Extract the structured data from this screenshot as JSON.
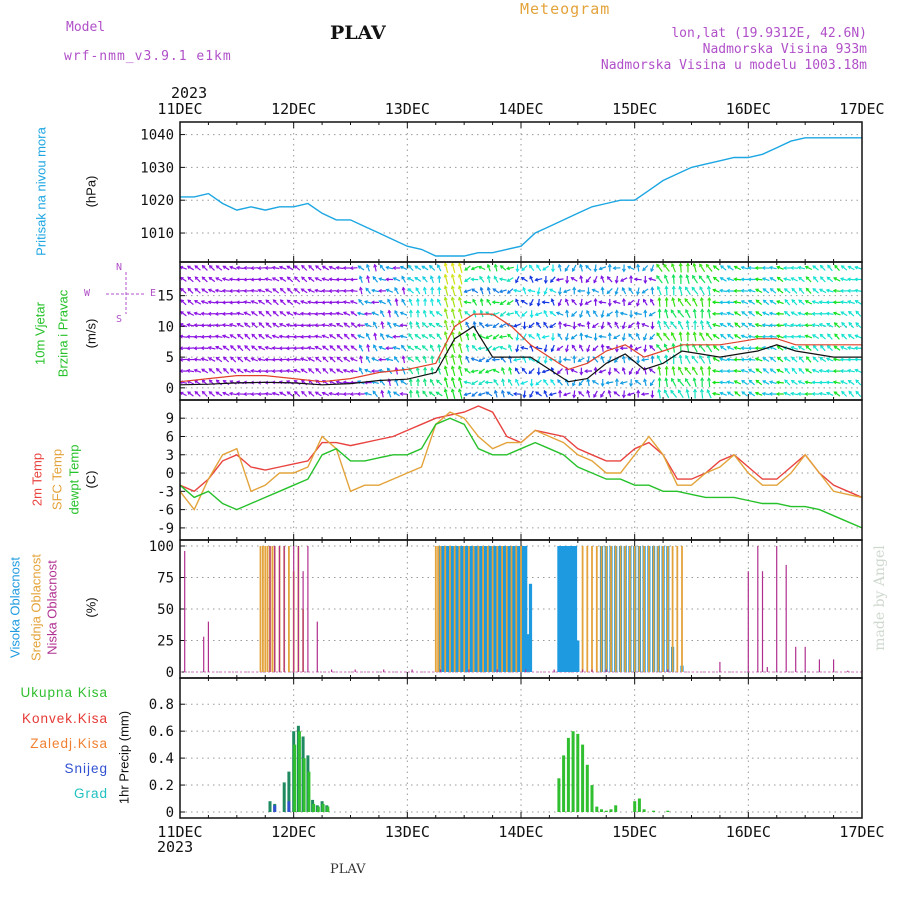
{
  "header": {
    "model_label": "Model",
    "model_name": "wrf-nmm_v3.9.1  e1km",
    "title": "PLAV",
    "subtitle": "Meteogram",
    "coords": "lon,lat (19.9312E, 42.6N)",
    "elevation": "Nadmorska Visina 933m",
    "model_elevation": "Nadmorska Visina u modelu 1003.18m",
    "footer_title": "PLAV",
    "watermark": "made by Angel"
  },
  "axis": {
    "year": "2023",
    "dates": [
      "11DEC",
      "12DEC",
      "13DEC",
      "14DEC",
      "15DEC",
      "16DEC",
      "17DEC"
    ]
  },
  "colors": {
    "pressure": "#1ca6e2",
    "wind_speed": "#111111",
    "gust": "#e0402a",
    "temp2m": "#e8433f",
    "sfc_temp": "#e3a33a",
    "dewpt": "#26c12a",
    "high_cloud": "#1e9be0",
    "mid_cloud": "#e3a33a",
    "low_cloud": "#b03090",
    "total_precip": "#2fbf2f",
    "conv_precip": "#e53935",
    "frozen": "#f08030",
    "snow": "#3050d0",
    "graupel": "#20c0c0",
    "label_purple": "#b050c8"
  },
  "panel_labels": {
    "pressure": [
      "Pritisak na nivou mora",
      "(hPa)"
    ],
    "wind": [
      "10m Vjetar",
      "Brzina i Pravac",
      "(m/s)"
    ],
    "compass": [
      "N",
      "S",
      "W",
      "E"
    ],
    "temp": [
      "2m Temp",
      "SFC Temp",
      "dewpt Temp",
      "(C)"
    ],
    "cloud": [
      "Visoka Oblacnost",
      "Srednja Oblacnost",
      "Niska Oblacnost",
      "(%)"
    ],
    "precip": [
      "Ukupna Kisa",
      "Konvek.Kisa",
      "Zaledj.Kisa",
      "Snijeg",
      "Grad"
    ],
    "precip_axis": "1hr Precip (mm)"
  },
  "chart_data": [
    {
      "type": "line",
      "x": [
        0,
        3,
        6,
        9,
        12,
        15,
        18,
        21,
        24,
        27,
        30,
        33,
        36,
        39,
        42,
        45,
        48,
        51,
        54,
        57,
        60,
        63,
        66,
        69,
        72,
        75,
        78,
        81,
        84,
        87,
        90,
        93,
        96,
        99,
        102,
        105,
        108,
        111,
        114,
        117,
        120,
        123,
        126,
        129,
        132,
        135,
        138,
        141,
        144
      ],
      "series": [
        {
          "values": [
            1021,
            1021,
            1022,
            1019,
            1017,
            1018,
            1017,
            1018,
            1018,
            1019,
            1016,
            1014,
            1014,
            1012,
            1010,
            1008,
            1006,
            1005,
            1003,
            1003,
            1003,
            1004,
            1004,
            1005,
            1006,
            1010,
            1012,
            1014,
            1016,
            1018,
            1019,
            1020,
            1020,
            1023,
            1026,
            1028,
            1030,
            1031,
            1032,
            1033,
            1033,
            1034,
            1036,
            1038,
            1039,
            1039,
            1039,
            1039,
            1039
          ]
        }
      ],
      "ylim": [
        1003,
        1042
      ],
      "yticks": [
        1010,
        1020,
        1030,
        1040
      ]
    },
    {
      "type": "line",
      "x": [
        0,
        6,
        12,
        18,
        24,
        30,
        36,
        42,
        48,
        54,
        58,
        62,
        66,
        70,
        74,
        78,
        82,
        86,
        90,
        94,
        98,
        102,
        106,
        110,
        114,
        118,
        122,
        126,
        130,
        134,
        138,
        144
      ],
      "series": [
        {
          "values": [
            0.5,
            0.6,
            0.8,
            0.9,
            0.8,
            0.5,
            0.7,
            1.2,
            1.4,
            2.5,
            8,
            10,
            5,
            5,
            5,
            3,
            1,
            1.5,
            4,
            5.5,
            3,
            4,
            6,
            5.5,
            5,
            5.5,
            6,
            7,
            6,
            5.5,
            5,
            5
          ]
        },
        {
          "values": [
            1,
            1.5,
            2,
            2,
            1.5,
            1,
            1.5,
            2.5,
            3,
            4,
            10,
            12,
            12,
            10,
            7,
            5,
            3,
            4,
            6,
            7,
            5,
            6,
            7,
            7,
            7,
            7.5,
            8,
            8,
            7,
            7,
            7,
            7
          ]
        }
      ],
      "ylim": [
        -1,
        19.5
      ],
      "yticks": [
        0,
        5,
        10,
        15
      ]
    },
    {
      "type": "line",
      "x": [
        0,
        3,
        6,
        9,
        12,
        15,
        18,
        21,
        24,
        27,
        30,
        33,
        36,
        39,
        42,
        45,
        48,
        51,
        54,
        57,
        60,
        63,
        66,
        69,
        72,
        75,
        78,
        81,
        84,
        87,
        90,
        93,
        96,
        99,
        102,
        105,
        108,
        111,
        114,
        117,
        120,
        123,
        126,
        129,
        132,
        135,
        138,
        141,
        144
      ],
      "series": [
        {
          "values": [
            -2,
            -3,
            -1,
            2,
            3,
            1,
            0.5,
            1,
            1.5,
            2,
            5,
            5,
            4.5,
            5,
            5.5,
            6,
            7,
            8,
            9,
            9.5,
            10,
            11,
            10,
            6,
            5,
            7,
            6.5,
            6,
            4,
            3,
            2,
            2,
            4,
            5,
            3,
            -1,
            -1,
            0,
            2,
            3,
            1,
            -1,
            -1,
            1,
            3,
            0,
            -2,
            -3,
            -4
          ]
        },
        {
          "values": [
            -3,
            -6,
            -1,
            3,
            4,
            -3,
            -2,
            0,
            0,
            1,
            6,
            4,
            -3,
            -2,
            -2,
            -1,
            0,
            1,
            8,
            10,
            9,
            6,
            4,
            5,
            5,
            7,
            6,
            5,
            3,
            2,
            0,
            0,
            3,
            6,
            3,
            -2,
            -2,
            0,
            1,
            3,
            0,
            -2,
            -2,
            0,
            3,
            0,
            -3,
            -3.5,
            -4
          ]
        },
        {
          "values": [
            -2,
            -4,
            -3,
            -5,
            -6,
            -5,
            -4,
            -3,
            -2,
            -1,
            3,
            4,
            2,
            2,
            2.5,
            3,
            3,
            4,
            8,
            9,
            8,
            4,
            3,
            3,
            4,
            5,
            4,
            3,
            1,
            0,
            -1,
            -1,
            -2,
            -2,
            -3,
            -3,
            -3.5,
            -4,
            -4,
            -4,
            -4.5,
            -5,
            -5,
            -5.5,
            -5.5,
            -6,
            -7,
            -8,
            -9
          ]
        }
      ],
      "ylim": [
        -10,
        11
      ],
      "yticks": [
        -9,
        -6,
        -3,
        0,
        3,
        6,
        9
      ]
    },
    {
      "type": "bar",
      "series": [
        {
          "x": [
            55,
            55.5,
            56,
            56.5,
            57,
            57.5,
            58,
            58.5,
            59,
            59.5,
            60,
            60.5,
            61,
            61.5,
            62,
            62.5,
            63,
            63.5,
            64,
            64.5,
            65,
            65.5,
            66,
            66.5,
            67,
            67.5,
            68,
            68.5,
            69,
            69.5,
            70,
            70.5,
            71,
            71.5,
            72,
            72.5,
            73,
            73.5,
            74,
            80,
            80.5,
            81,
            81.5,
            82,
            82.5,
            83,
            83.5,
            84,
            89,
            90,
            91,
            92,
            93,
            94,
            95,
            96,
            97,
            98,
            99,
            100,
            101,
            102,
            103,
            104,
            106
          ],
          "values": [
            100,
            100,
            100,
            100,
            100,
            100,
            100,
            100,
            100,
            100,
            100,
            100,
            100,
            100,
            100,
            100,
            100,
            100,
            100,
            100,
            100,
            100,
            100,
            100,
            100,
            100,
            100,
            100,
            100,
            100,
            100,
            100,
            100,
            100,
            100,
            100,
            100,
            30,
            70,
            100,
            100,
            100,
            100,
            100,
            100,
            100,
            100,
            25,
            100,
            100,
            100,
            100,
            100,
            100,
            100,
            100,
            100,
            100,
            100,
            100,
            100,
            100,
            100,
            20,
            5
          ]
        },
        {
          "x": [
            17,
            17.5,
            18,
            18.5,
            19,
            19.5,
            20,
            21,
            22,
            23,
            24,
            25,
            26,
            54,
            54.5,
            55,
            56,
            57,
            58,
            59,
            60,
            61,
            62,
            63,
            64,
            65,
            66,
            67,
            68,
            69,
            70,
            71,
            72,
            85,
            86,
            87,
            88,
            89,
            90,
            91,
            92,
            93,
            94,
            95,
            96,
            97,
            98,
            99,
            100,
            101,
            102,
            103,
            104,
            105,
            106
          ],
          "values": [
            100,
            100,
            100,
            100,
            100,
            100,
            100,
            100,
            100,
            100,
            80,
            100,
            50,
            100,
            100,
            100,
            100,
            100,
            100,
            100,
            100,
            100,
            100,
            100,
            100,
            100,
            100,
            100,
            100,
            100,
            100,
            100,
            100,
            100,
            100,
            100,
            100,
            100,
            100,
            100,
            100,
            100,
            100,
            100,
            100,
            100,
            100,
            100,
            100,
            100,
            100,
            100,
            100,
            100,
            100
          ]
        },
        {
          "x": [
            1,
            5,
            6,
            19,
            20,
            21,
            22,
            24,
            25,
            26,
            27,
            29,
            32,
            37,
            43,
            49,
            55,
            61,
            67,
            73,
            79,
            85,
            87,
            90,
            103,
            114,
            120,
            122,
            123,
            124,
            126,
            128,
            130,
            132,
            135,
            138,
            141,
            144
          ],
          "values": [
            96,
            28,
            40,
            100,
            100,
            100,
            100,
            100,
            100,
            80,
            100,
            40,
            2,
            2,
            2,
            2,
            2,
            2,
            2,
            2,
            2,
            2,
            2,
            2,
            2,
            8,
            80,
            100,
            80,
            4,
            100,
            85,
            20,
            20,
            10,
            10,
            1,
            1
          ]
        }
      ],
      "ylim": [
        0,
        100
      ],
      "yticks": [
        0,
        25,
        50,
        75,
        100
      ]
    },
    {
      "type": "bar",
      "series": [
        {
          "x": [
            19,
            20,
            22,
            23,
            24,
            25,
            26,
            27,
            28,
            29,
            30,
            31,
            80,
            81,
            82,
            83,
            84,
            85,
            86,
            87,
            88,
            89,
            90,
            91,
            92,
            96,
            97,
            98,
            100,
            103
          ],
          "values": [
            0.08,
            0.06,
            0.22,
            0.3,
            0.6,
            0.64,
            0.56,
            0.42,
            0.09,
            0.05,
            0.08,
            0.05,
            0.25,
            0.42,
            0.55,
            0.6,
            0.58,
            0.5,
            0.35,
            0.2,
            0.04,
            0.02,
            0.01,
            0.02,
            0.05,
            0.08,
            0.1,
            0.02,
            0.01,
            0.01
          ]
        },
        {
          "x": [
            24,
            25,
            26,
            27,
            28,
            29,
            30,
            31
          ],
          "values": [
            0.5,
            0.6,
            0.4,
            0.3,
            0.06,
            0.04,
            0.06,
            0.04
          ]
        },
        {
          "x": [
            20,
            23
          ],
          "values": [
            0.05,
            0.08
          ]
        }
      ],
      "ylim": [
        0,
        0.95
      ],
      "yticks": [
        0,
        0.2,
        0.4,
        0.6,
        0.8
      ]
    }
  ]
}
